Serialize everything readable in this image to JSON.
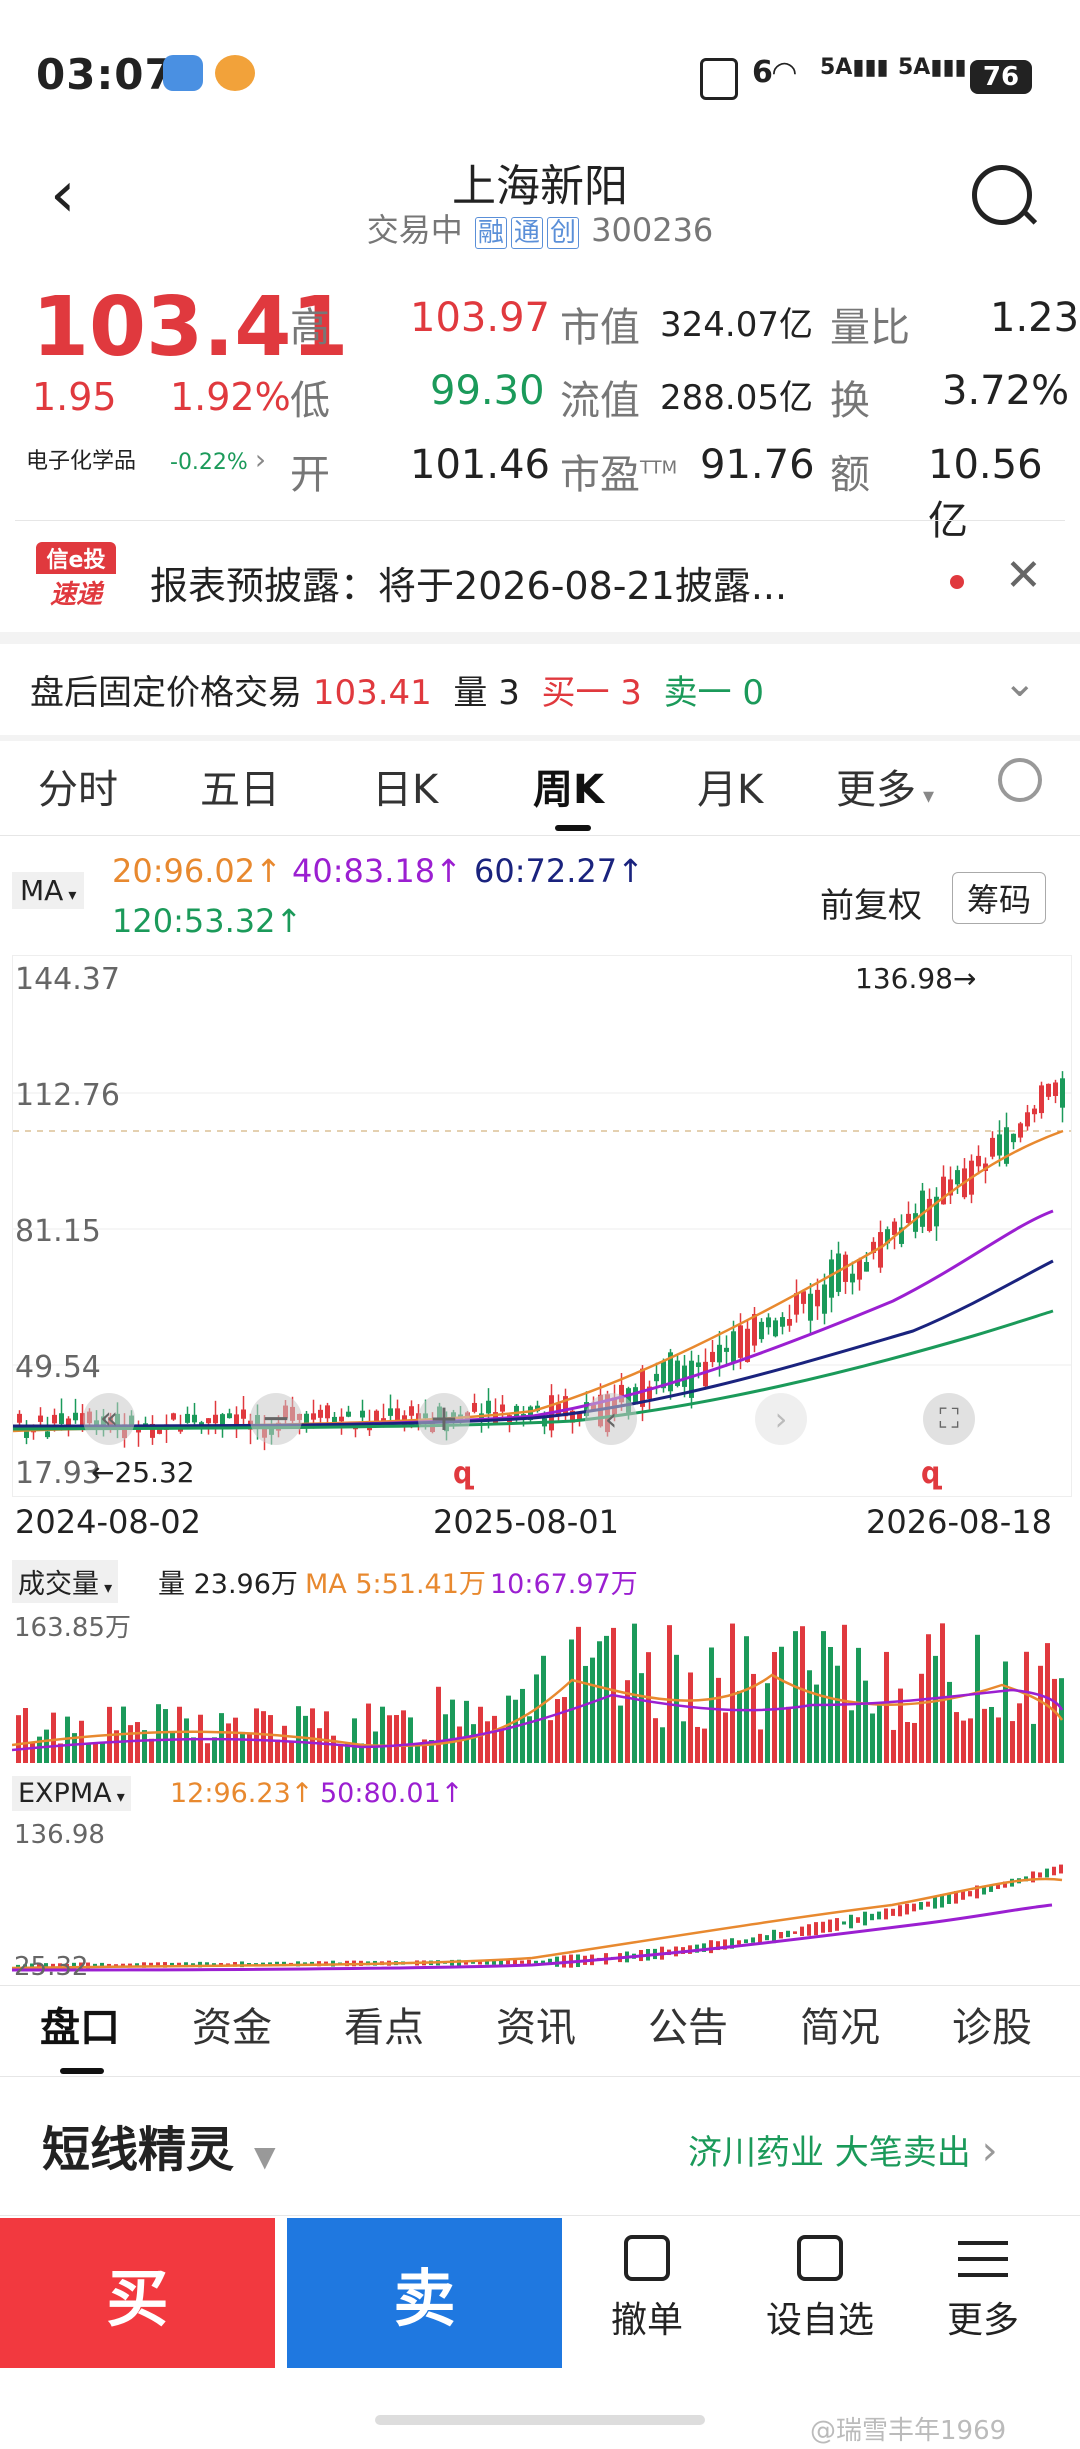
{
  "status_bar": {
    "time": "03:07",
    "battery": "76",
    "signal1": "5A",
    "signal2": "5A",
    "wifi": "6"
  },
  "header": {
    "title": "上海新阳",
    "trade_status": "交易中",
    "tags": [
      "融",
      "通",
      "创"
    ],
    "code": "300236"
  },
  "quote": {
    "price": "103.41",
    "change": "1.95",
    "change_pct": "1.92%",
    "sector": "电子化学品",
    "sector_pct": "-0.22%",
    "rows": [
      {
        "k1": "高",
        "v1": "103.97",
        "k2": "市值",
        "v2": "324.07亿",
        "k3": "量比",
        "v3": "1.23"
      },
      {
        "k1": "低",
        "v1": "99.30",
        "k2": "流值",
        "v2": "288.05亿",
        "k3": "换",
        "v3": "3.72%"
      },
      {
        "k1": "开",
        "v1": "101.46",
        "k2": "市盈",
        "k2sup": "TTM",
        "v2": "91.76",
        "k3": "额",
        "v3": "10.56亿"
      }
    ]
  },
  "notice": {
    "logo_top": "信e投",
    "logo_bottom": "速递",
    "text": "报表预披露：将于2026-08-21披露..."
  },
  "after_hours": {
    "label": "盘后固定价格交易",
    "price": "103.41",
    "vol_label": "量",
    "vol": "3",
    "buy_label": "买一",
    "buy": "3",
    "sell_label": "卖一",
    "sell": "0"
  },
  "period_tabs": [
    "分时",
    "五日",
    "日K",
    "周K",
    "月K",
    "更多"
  ],
  "active_period": "周K",
  "ma": {
    "selector": "MA",
    "ma20": "20:96.02↑",
    "ma40": "40:83.18↑",
    "ma60": "60:72.27↑",
    "ma120": "120:53.32↑",
    "adjust": "前复权",
    "chip_button": "筹码",
    "colors": {
      "ma20": "#e8892f",
      "ma40": "#9b1fd1",
      "ma60": "#1a237e",
      "ma120": "#1b9a5a"
    }
  },
  "kline": {
    "y_labels": [
      "144.37",
      "112.76",
      "81.15",
      "49.54",
      "17.93"
    ],
    "high_marker": "136.98→",
    "low_marker": "←25.32",
    "dates": [
      "2024-08-02",
      "2025-08-01",
      "2026-08-18"
    ]
  },
  "volume": {
    "selector": "成交量",
    "vol": "量 23.96万",
    "ma5": "MA 5:51.41万",
    "ma10": "10:67.97万",
    "max_label": "163.85万"
  },
  "expma": {
    "selector": "EXPMA",
    "e12": "12:96.23↑",
    "e50": "50:80.01↑",
    "top_label": "136.98",
    "bottom_label": "25.32"
  },
  "section_tabs": [
    "盘口",
    "资金",
    "看点",
    "资讯",
    "公告",
    "简况",
    "诊股"
  ],
  "active_section": "盘口",
  "short_line": {
    "title": "短线精灵",
    "event": "济川药业 大笔卖出"
  },
  "bottom_bar": {
    "buy": "买",
    "sell": "卖",
    "cancel": "撤单",
    "watchlist": "设自选",
    "more": "更多"
  },
  "watermark": "@瑞雪丰年1969"
}
